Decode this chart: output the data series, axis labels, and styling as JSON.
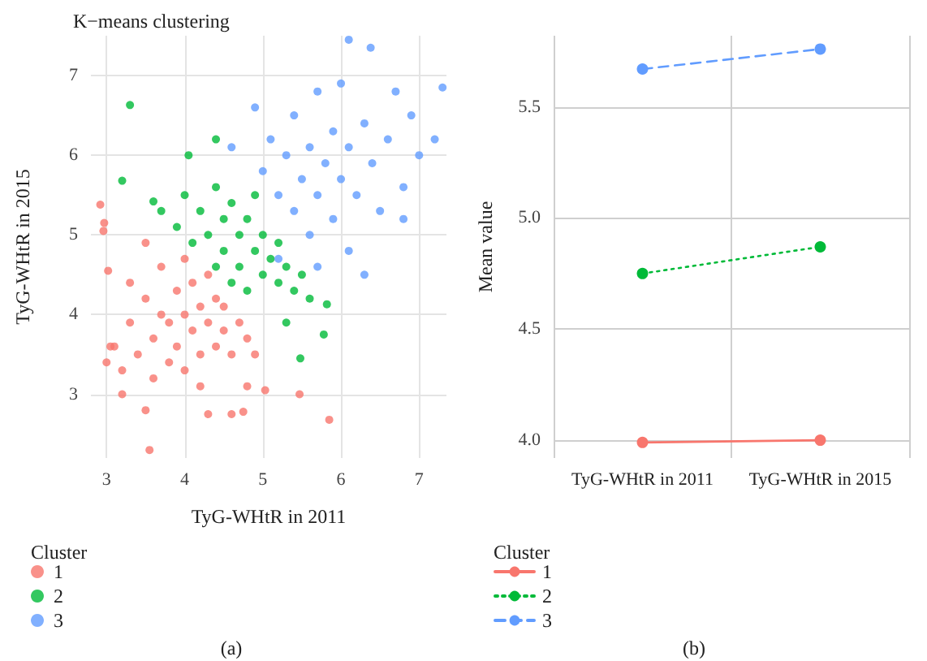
{
  "chart_data": [
    {
      "type": "scatter",
      "title": "K−means clustering",
      "xlabel": "TyG-WHtR in 2011",
      "ylabel": "TyG-WHtR in 2015",
      "legend_title": "Cluster",
      "legend": "bottom left",
      "marker": "circle",
      "grid": true,
      "xlim": [
        2.8,
        7.35
      ],
      "ylim": [
        2.2,
        7.5
      ],
      "xticks": [
        3,
        4,
        5,
        6,
        7
      ],
      "yticks": [
        3,
        4,
        5,
        6,
        7
      ],
      "annotations": [
        "(a)"
      ],
      "series": [
        {
          "name": "1",
          "color": "#f8766d",
          "x": [
            3.1,
            3.2,
            3.3,
            3.4,
            3.5,
            3.6,
            3.6,
            3.7,
            3.7,
            3.8,
            3.8,
            3.9,
            3.9,
            4.0,
            4.0,
            4.0,
            4.1,
            4.1,
            4.2,
            4.2,
            4.3,
            4.3,
            4.4,
            4.4,
            4.5,
            4.5,
            4.6,
            4.7,
            4.8,
            4.9,
            3.5,
            3.3,
            3.0,
            4.2,
            2.92,
            2.97,
            2.96,
            3.02,
            3.5,
            3.55,
            4.3,
            4.6,
            4.75,
            5.47,
            5.85,
            5.03,
            4.8,
            3.2,
            3.05
          ],
          "values": [
            3.6,
            3.3,
            3.9,
            3.5,
            4.2,
            3.7,
            3.2,
            4.0,
            4.6,
            3.4,
            3.9,
            4.3,
            3.6,
            4.0,
            3.3,
            4.7,
            3.8,
            4.4,
            3.5,
            4.1,
            3.9,
            4.5,
            3.6,
            4.2,
            3.8,
            4.1,
            3.5,
            3.9,
            3.7,
            3.5,
            4.9,
            4.4,
            3.4,
            3.1,
            5.38,
            5.15,
            5.05,
            4.55,
            2.8,
            2.3,
            2.75,
            2.75,
            2.78,
            3.0,
            2.68,
            3.05,
            3.1,
            3.0,
            3.6
          ]
        },
        {
          "name": "2",
          "color": "#00ba38",
          "x": [
            3.3,
            3.2,
            3.6,
            3.7,
            3.9,
            4.0,
            4.1,
            4.2,
            4.3,
            4.4,
            4.4,
            4.5,
            4.5,
            4.6,
            4.6,
            4.7,
            4.7,
            4.8,
            4.8,
            4.9,
            4.9,
            5.0,
            5.0,
            5.1,
            5.2,
            5.2,
            5.3,
            5.4,
            5.5,
            5.6,
            4.4,
            4.05,
            5.78,
            5.48,
            5.82,
            5.3
          ],
          "values": [
            6.63,
            5.68,
            5.42,
            5.3,
            5.1,
            5.5,
            4.9,
            5.3,
            5.0,
            5.6,
            4.6,
            5.2,
            4.8,
            4.4,
            5.4,
            5.0,
            4.6,
            5.2,
            4.3,
            4.8,
            5.5,
            4.5,
            5.0,
            4.7,
            4.4,
            4.9,
            4.6,
            4.3,
            4.5,
            4.2,
            6.2,
            6.0,
            3.75,
            3.45,
            4.13,
            3.9
          ]
        },
        {
          "name": "3",
          "color": "#619cff",
          "x": [
            4.6,
            4.9,
            5.0,
            5.1,
            5.2,
            5.3,
            5.4,
            5.4,
            5.5,
            5.6,
            5.6,
            5.7,
            5.7,
            5.8,
            5.9,
            5.9,
            6.0,
            6.0,
            6.1,
            6.1,
            6.2,
            6.3,
            6.4,
            6.5,
            6.6,
            6.7,
            6.8,
            6.9,
            7.0,
            7.2,
            7.3,
            6.1,
            6.38,
            6.3,
            5.2,
            5.7,
            6.8
          ],
          "values": [
            6.1,
            6.6,
            5.8,
            6.2,
            5.5,
            6.0,
            5.3,
            6.5,
            5.7,
            6.1,
            5.0,
            5.5,
            6.8,
            5.9,
            5.2,
            6.3,
            5.7,
            6.9,
            6.1,
            4.8,
            5.5,
            6.4,
            5.9,
            5.3,
            6.2,
            6.8,
            5.6,
            6.5,
            6.0,
            6.2,
            6.85,
            7.45,
            7.35,
            4.5,
            4.7,
            4.6,
            5.2
          ]
        }
      ]
    },
    {
      "type": "line",
      "ylabel": "Mean value",
      "legend_title": "Cluster",
      "legend": "bottom left",
      "marker": "circle",
      "grid": true,
      "categories": [
        "TyG-WHtR in 2011",
        "TyG-WHtR in 2015"
      ],
      "ylim": [
        3.92,
        5.82
      ],
      "yticks": [
        {
          "value": 4,
          "label": "4.0"
        },
        5.5,
        {
          "value": 5,
          "label": "5.0"
        },
        4.5
      ],
      "annotations": [
        "(b)"
      ],
      "series": [
        {
          "name": "1",
          "color": "#f8766d",
          "line_style": "solid",
          "values": [
            3.99,
            4.0
          ]
        },
        {
          "name": "2",
          "color": "#00ba38",
          "line_style": "dotted",
          "values": [
            4.75,
            4.87
          ]
        },
        {
          "name": "3",
          "color": "#619cff",
          "line_style": "dashed",
          "values": [
            5.67,
            5.76
          ]
        }
      ]
    }
  ]
}
